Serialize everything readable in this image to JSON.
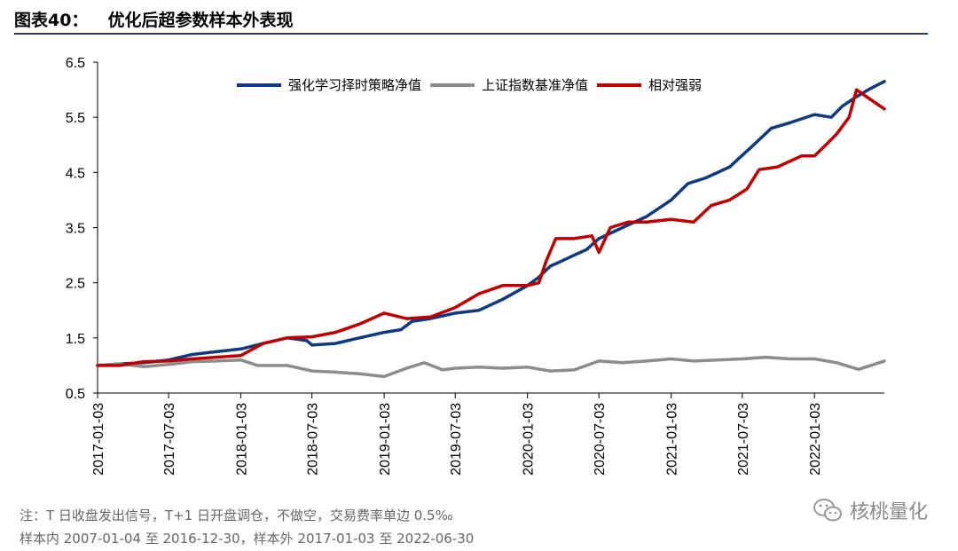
{
  "header": {
    "figure_label": "图表40：",
    "title": "优化后超参数样本外表现"
  },
  "chart_data": {
    "type": "line",
    "y_ticks": [
      "6.5",
      "5.5",
      "4.5",
      "3.5",
      "2.5",
      "1.5",
      "0.5"
    ],
    "ylim": [
      0.5,
      6.5
    ],
    "x_ticks": [
      "2017-01-03",
      "2017-07-03",
      "2018-01-03",
      "2018-07-03",
      "2019-01-03",
      "2019-07-03",
      "2020-01-03",
      "2020-07-03",
      "2021-01-03",
      "2021-07-03",
      "2022-01-03"
    ],
    "xlim": [
      "2017-01-03",
      "2022-06-30"
    ],
    "grid": false,
    "legend_position": "top",
    "series": [
      {
        "name": "强化学习择时策略净值",
        "color": "#0d3a80",
        "points": [
          [
            "2017-01-03",
            1.0
          ],
          [
            "2017-03-01",
            1.03
          ],
          [
            "2017-05-01",
            1.05
          ],
          [
            "2017-07-03",
            1.1
          ],
          [
            "2017-09-01",
            1.2
          ],
          [
            "2017-11-01",
            1.25
          ],
          [
            "2018-01-03",
            1.3
          ],
          [
            "2018-03-01",
            1.4
          ],
          [
            "2018-05-01",
            1.5
          ],
          [
            "2018-06-20",
            1.45
          ],
          [
            "2018-07-03",
            1.37
          ],
          [
            "2018-09-01",
            1.4
          ],
          [
            "2018-11-01",
            1.5
          ],
          [
            "2019-01-03",
            1.6
          ],
          [
            "2019-02-15",
            1.65
          ],
          [
            "2019-03-15",
            1.8
          ],
          [
            "2019-05-01",
            1.85
          ],
          [
            "2019-07-03",
            1.95
          ],
          [
            "2019-09-01",
            2.0
          ],
          [
            "2019-11-01",
            2.2
          ],
          [
            "2020-01-03",
            2.45
          ],
          [
            "2020-02-01",
            2.6
          ],
          [
            "2020-03-01",
            2.8
          ],
          [
            "2020-04-01",
            2.9
          ],
          [
            "2020-05-01",
            3.0
          ],
          [
            "2020-06-01",
            3.1
          ],
          [
            "2020-07-03",
            3.3
          ],
          [
            "2020-09-01",
            3.5
          ],
          [
            "2020-11-01",
            3.7
          ],
          [
            "2021-01-03",
            4.0
          ],
          [
            "2021-02-15",
            4.3
          ],
          [
            "2021-04-01",
            4.4
          ],
          [
            "2021-06-01",
            4.6
          ],
          [
            "2021-08-01",
            5.0
          ],
          [
            "2021-09-15",
            5.3
          ],
          [
            "2021-11-01",
            5.4
          ],
          [
            "2022-01-03",
            5.55
          ],
          [
            "2022-02-15",
            5.5
          ],
          [
            "2022-03-15",
            5.7
          ],
          [
            "2022-04-15",
            5.85
          ],
          [
            "2022-05-20",
            6.0
          ],
          [
            "2022-06-30",
            6.15
          ]
        ]
      },
      {
        "name": "上证指数基准净值",
        "color": "#8c8c8c",
        "points": [
          [
            "2017-01-03",
            1.0
          ],
          [
            "2017-03-01",
            1.03
          ],
          [
            "2017-05-01",
            0.98
          ],
          [
            "2017-07-03",
            1.02
          ],
          [
            "2017-09-01",
            1.07
          ],
          [
            "2017-11-01",
            1.08
          ],
          [
            "2018-01-03",
            1.1
          ],
          [
            "2018-02-15",
            1.0
          ],
          [
            "2018-05-01",
            1.0
          ],
          [
            "2018-07-03",
            0.9
          ],
          [
            "2018-09-01",
            0.88
          ],
          [
            "2018-11-01",
            0.85
          ],
          [
            "2019-01-03",
            0.8
          ],
          [
            "2019-03-01",
            0.95
          ],
          [
            "2019-04-15",
            1.05
          ],
          [
            "2019-06-01",
            0.92
          ],
          [
            "2019-07-03",
            0.95
          ],
          [
            "2019-09-01",
            0.97
          ],
          [
            "2019-11-01",
            0.95
          ],
          [
            "2020-01-03",
            0.97
          ],
          [
            "2020-03-01",
            0.9
          ],
          [
            "2020-05-01",
            0.92
          ],
          [
            "2020-07-03",
            1.08
          ],
          [
            "2020-09-01",
            1.05
          ],
          [
            "2020-11-01",
            1.08
          ],
          [
            "2021-01-03",
            1.12
          ],
          [
            "2021-03-01",
            1.08
          ],
          [
            "2021-05-01",
            1.1
          ],
          [
            "2021-07-03",
            1.12
          ],
          [
            "2021-09-01",
            1.15
          ],
          [
            "2021-11-01",
            1.12
          ],
          [
            "2022-01-03",
            1.12
          ],
          [
            "2022-03-01",
            1.05
          ],
          [
            "2022-04-25",
            0.93
          ],
          [
            "2022-06-30",
            1.08
          ]
        ]
      },
      {
        "name": "相对强弱",
        "color": "#c00000",
        "points": [
          [
            "2017-01-03",
            1.0
          ],
          [
            "2017-03-01",
            1.0
          ],
          [
            "2017-05-01",
            1.07
          ],
          [
            "2017-07-03",
            1.08
          ],
          [
            "2017-09-01",
            1.12
          ],
          [
            "2017-11-01",
            1.15
          ],
          [
            "2018-01-03",
            1.18
          ],
          [
            "2018-03-01",
            1.4
          ],
          [
            "2018-05-01",
            1.5
          ],
          [
            "2018-07-03",
            1.52
          ],
          [
            "2018-09-01",
            1.6
          ],
          [
            "2018-11-01",
            1.75
          ],
          [
            "2019-01-03",
            1.95
          ],
          [
            "2019-03-01",
            1.85
          ],
          [
            "2019-05-01",
            1.88
          ],
          [
            "2019-07-03",
            2.05
          ],
          [
            "2019-09-01",
            2.3
          ],
          [
            "2019-11-01",
            2.45
          ],
          [
            "2020-01-03",
            2.45
          ],
          [
            "2020-02-01",
            2.5
          ],
          [
            "2020-02-20",
            2.9
          ],
          [
            "2020-03-15",
            3.3
          ],
          [
            "2020-05-01",
            3.3
          ],
          [
            "2020-06-15",
            3.35
          ],
          [
            "2020-07-03",
            3.05
          ],
          [
            "2020-08-01",
            3.5
          ],
          [
            "2020-09-15",
            3.6
          ],
          [
            "2020-11-01",
            3.6
          ],
          [
            "2021-01-03",
            3.65
          ],
          [
            "2021-03-01",
            3.6
          ],
          [
            "2021-04-15",
            3.9
          ],
          [
            "2021-06-01",
            4.0
          ],
          [
            "2021-07-15",
            4.2
          ],
          [
            "2021-08-15",
            4.55
          ],
          [
            "2021-10-01",
            4.6
          ],
          [
            "2021-12-01",
            4.8
          ],
          [
            "2022-01-03",
            4.8
          ],
          [
            "2022-02-01",
            5.0
          ],
          [
            "2022-03-01",
            5.2
          ],
          [
            "2022-04-01",
            5.5
          ],
          [
            "2022-04-20",
            6.0
          ],
          [
            "2022-05-20",
            5.85
          ],
          [
            "2022-06-30",
            5.65
          ]
        ]
      }
    ]
  },
  "notes": {
    "line1": "注：T 日收盘发出信号，T+1 日开盘调仓，不做空，交易费率单边 0.5‰",
    "line2": "样本内 2007-01-04 至 2016-12-30，样本外 2017-01-03 至 2022-06-30"
  },
  "watermark": {
    "text": "核桃量化",
    "icon": "wechat-icon"
  }
}
